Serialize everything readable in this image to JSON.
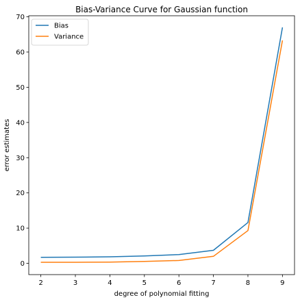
{
  "chart_data": {
    "type": "line",
    "title": "Bias-Variance Curve for Gaussian function",
    "xlabel": "degree of polynomial fitting",
    "ylabel": "error estimates",
    "x": [
      2,
      3,
      4,
      5,
      6,
      7,
      8,
      9
    ],
    "series": [
      {
        "name": "Bias",
        "color": "#1f77b4",
        "values": [
          1.7,
          1.75,
          1.85,
          2.1,
          2.5,
          3.7,
          11.6,
          67.0
        ]
      },
      {
        "name": "Variance",
        "color": "#ff7f0e",
        "values": [
          0.3,
          0.3,
          0.35,
          0.55,
          0.8,
          2.0,
          9.3,
          63.3
        ]
      }
    ],
    "xlim": [
      1.65,
      9.35
    ],
    "ylim": [
      -3.2,
      70.3
    ],
    "xticks": [
      2,
      3,
      4,
      5,
      6,
      7,
      8,
      9
    ],
    "yticks": [
      0,
      10,
      20,
      30,
      40,
      50,
      60,
      70
    ],
    "grid": false,
    "legend_position": "top-left"
  }
}
